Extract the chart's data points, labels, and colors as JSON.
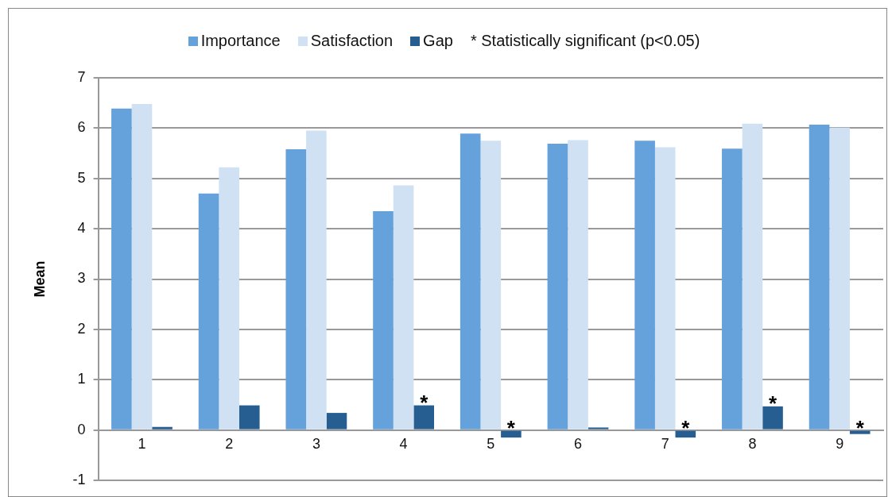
{
  "chart_data": {
    "type": "bar",
    "ylabel": "Mean",
    "categories": [
      "1",
      "2",
      "3",
      "4",
      "5",
      "6",
      "7",
      "8",
      "9"
    ],
    "series": [
      {
        "name": "Importance",
        "color": "#65a2dc",
        "values": [
          6.39,
          4.7,
          5.58,
          4.35,
          5.89,
          5.69,
          5.75,
          5.59,
          6.07
        ]
      },
      {
        "name": "Satisfaction",
        "color": "#d0e1f3",
        "values": [
          6.48,
          5.22,
          5.95,
          4.86,
          5.75,
          5.76,
          5.62,
          6.09,
          6.01
        ]
      },
      {
        "name": "Gap",
        "color": "#265e92",
        "values": [
          0.06,
          0.49,
          0.34,
          0.49,
          -0.15,
          0.05,
          -0.15,
          0.47,
          -0.08
        ],
        "value_labels": [
          null,
          null,
          null,
          "*",
          "*",
          null,
          "*",
          "*",
          "*"
        ]
      }
    ],
    "ylim": [
      -1,
      7
    ],
    "yticks": [
      -1,
      0,
      1,
      2,
      3,
      4,
      5,
      6,
      7
    ],
    "grid": "y",
    "legend": "top",
    "annotations": [
      "* Statistically significant (p<0.05)"
    ]
  }
}
